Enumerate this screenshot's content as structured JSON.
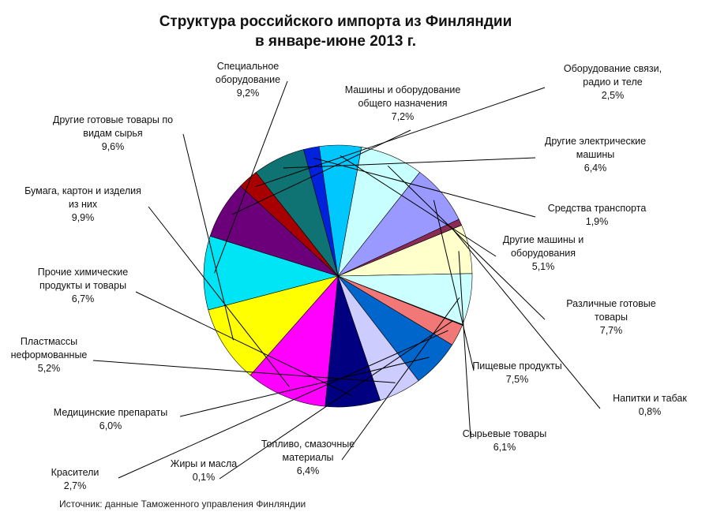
{
  "chart_data": {
    "type": "pie",
    "title_line1": "Структура российского импорта из Финляндии",
    "title_line2": "в январе-июне 2013 г.",
    "source": "Источник: данные Таможенного управления Финляндии",
    "slices": [
      {
        "label": [
          "Специальное",
          "оборудование"
        ],
        "value_text": "9,2%",
        "value": 9.2,
        "color": "#00e5f5"
      },
      {
        "label": [
          "Машины и оборудование",
          "общего назначения"
        ],
        "value_text": "7,2%",
        "value": 7.2,
        "color": "#6b007a"
      },
      {
        "label": [
          "Оборудование связи,",
          "радио и теле"
        ],
        "value_text": "2,5%",
        "value": 2.5,
        "color": "#a80000"
      },
      {
        "label": [
          "Другие электрические",
          "машины"
        ],
        "value_text": "6,4%",
        "value": 6.4,
        "color": "#0e7372"
      },
      {
        "label": [
          "Средства транспорта"
        ],
        "value_text": "1,9%",
        "value": 1.9,
        "color": "#0022dd"
      },
      {
        "label": [
          "Другие машины и",
          "оборудования"
        ],
        "value_text": "5,1%",
        "value": 5.1,
        "color": "#00c8ff"
      },
      {
        "label": [
          "Различные готовые",
          "товары"
        ],
        "value_text": "7,7%",
        "value": 7.7,
        "color": "#c8ffff"
      },
      {
        "label": [
          "Пищевые продукты"
        ],
        "value_text": "7,5%",
        "value": 7.5,
        "color": "#9999ff"
      },
      {
        "label": [
          "Напитки и табак"
        ],
        "value_text": "0,8%",
        "value": 0.8,
        "color": "#8a2a55"
      },
      {
        "label": [
          "Сырьевые товары"
        ],
        "value_text": "6,1%",
        "value": 6.1,
        "color": "#ffffcc"
      },
      {
        "label": [
          "Топливо, смазочные",
          "материалы"
        ],
        "value_text": "6,4%",
        "value": 6.4,
        "color": "#ccffff"
      },
      {
        "label": [
          "Жиры и масла"
        ],
        "value_text": "0,1%",
        "value": 0.1,
        "color": "#222222"
      },
      {
        "label": [
          "Красители"
        ],
        "value_text": "2,7%",
        "value": 2.7,
        "color": "#f27878"
      },
      {
        "label": [
          "Медицинские препараты"
        ],
        "value_text": "6,0%",
        "value": 6.0,
        "color": "#0066cc"
      },
      {
        "label": [
          "Пластмассы",
          "неформованные"
        ],
        "value_text": "5,2%",
        "value": 5.2,
        "color": "#ccccff"
      },
      {
        "label": [
          "Прочие химические",
          "продукты и товары"
        ],
        "value_text": "6,7%",
        "value": 6.7,
        "color": "#000080"
      },
      {
        "label": [
          "Бумага, картон и изделия",
          "из них"
        ],
        "value_text": "9,9%",
        "value": 9.9,
        "color": "#ff00ff"
      },
      {
        "label": [
          "Другие готовые товары по",
          "видам сырья"
        ],
        "value_text": "9,6%",
        "value": 9.6,
        "color": "#ffff00"
      }
    ]
  }
}
